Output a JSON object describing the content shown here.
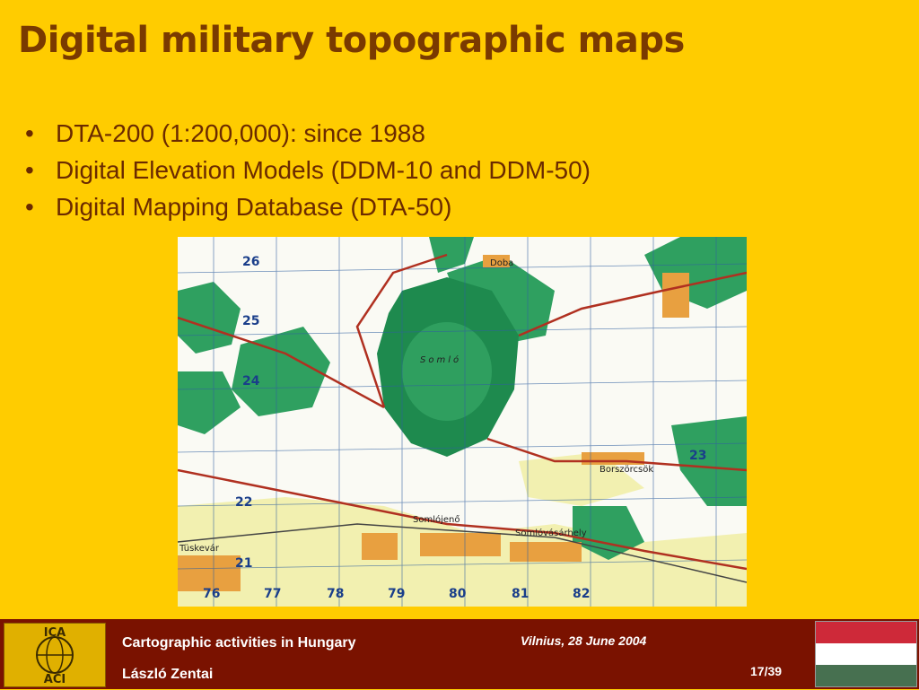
{
  "slide": {
    "title": "Digital military topographic maps",
    "bullets": [
      "DTA-200 (1:200,000): since 1988",
      "Digital Elevation Models  (DDM-10 and DDM-50)",
      "Digital Mapping Database  (DTA-50)"
    ]
  },
  "map": {
    "grid_labels": [
      "26",
      "25",
      "24",
      "23",
      "22",
      "21",
      "76",
      "77",
      "78",
      "79",
      "80",
      "81",
      "82"
    ],
    "place_names": [
      "Doba",
      "Somló",
      "Borszörcsök",
      "Somlójenő",
      "Somlóvásárhely",
      "Tüskevár"
    ],
    "colors": {
      "forest": "#2FA060",
      "forest_dark": "#1E8A4E",
      "settlement": "#E8A040",
      "road": "#B03020",
      "grid": "#3060A0"
    }
  },
  "footer": {
    "logo_top": "ICA",
    "logo_bottom": "ACI",
    "presentation": "Cartographic activities in Hungary",
    "author": "László Zentai",
    "event": "Vilnius, 28 June 2004",
    "page": "17/39",
    "flag_colors": [
      "#CE2939",
      "#FFFFFF",
      "#477050"
    ]
  },
  "colors": {
    "background": "#FFCC00",
    "title": "#7A3A00",
    "footer": "#7A1200"
  }
}
